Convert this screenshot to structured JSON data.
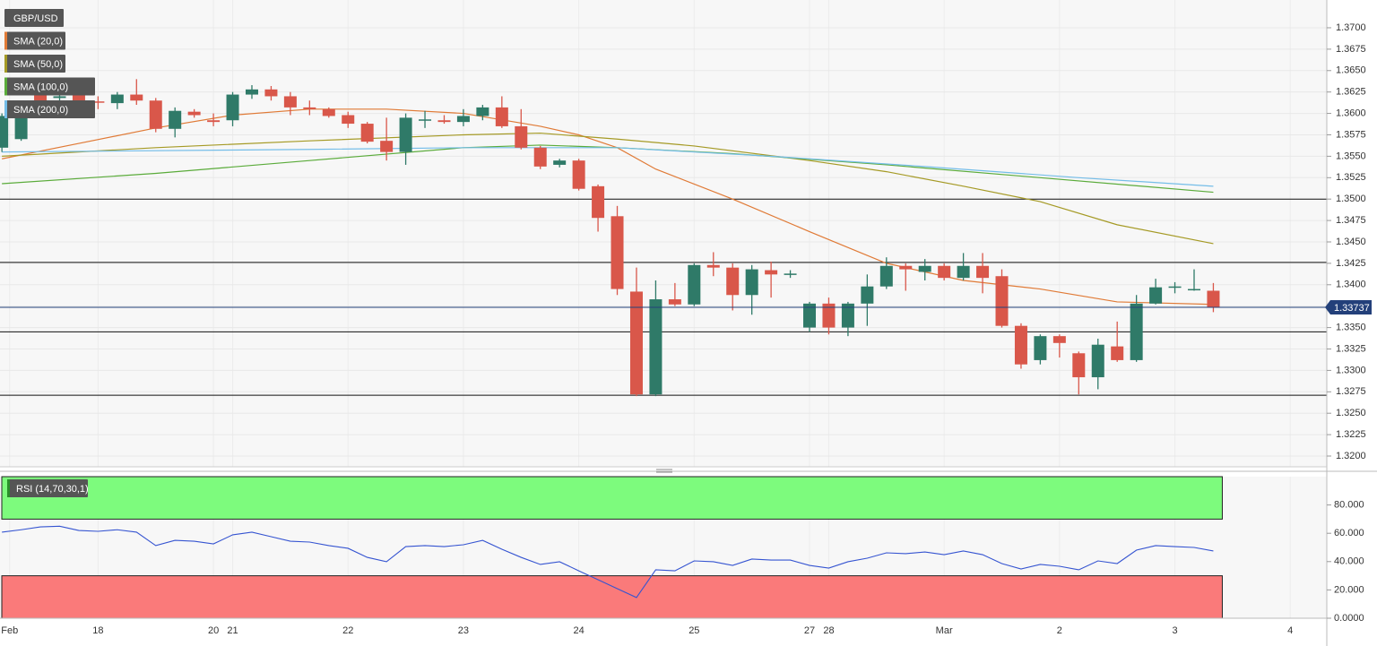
{
  "chart_data": [
    {
      "type": "candlestick",
      "title": "GBP/USD",
      "xlim": [
        -0.1,
        68.9
      ],
      "xticks": [
        {
          "value": 0.4,
          "label": "Feb"
        },
        {
          "value": 5,
          "label": "18"
        },
        {
          "value": 11,
          "label": "20"
        },
        {
          "value": 12,
          "label": "21"
        },
        {
          "value": 18,
          "label": "22"
        },
        {
          "value": 24,
          "label": "23"
        },
        {
          "value": 30,
          "label": "24"
        },
        {
          "value": 36,
          "label": "25"
        },
        {
          "value": 42,
          "label": "27"
        },
        {
          "value": 43,
          "label": "28"
        },
        {
          "value": 49,
          "label": "Mar"
        },
        {
          "value": 55,
          "label": "2"
        },
        {
          "value": 61,
          "label": "3"
        },
        {
          "value": 67,
          "label": "4"
        }
      ],
      "ylim": [
        1.31885,
        1.37324
      ],
      "yticks": [
        {
          "value": 1.32,
          "label": "1.3200"
        },
        {
          "value": 1.3225,
          "label": "1.3225"
        },
        {
          "value": 1.325,
          "label": "1.3250"
        },
        {
          "value": 1.3275,
          "label": "1.3275"
        },
        {
          "value": 1.33,
          "label": "1.3300"
        },
        {
          "value": 1.3325,
          "label": "1.3325"
        },
        {
          "value": 1.335,
          "label": "1.3350"
        },
        {
          "value": 1.3375,
          "label": "1.3375"
        },
        {
          "value": 1.34,
          "label": "1.3400"
        },
        {
          "value": 1.3425,
          "label": "1.3425"
        },
        {
          "value": 1.345,
          "label": "1.3450"
        },
        {
          "value": 1.3475,
          "label": "1.3475"
        },
        {
          "value": 1.35,
          "label": "1.3500"
        },
        {
          "value": 1.3525,
          "label": "1.3525"
        },
        {
          "value": 1.355,
          "label": "1.3550"
        },
        {
          "value": 1.3575,
          "label": "1.3575"
        },
        {
          "value": 1.36,
          "label": "1.3600"
        },
        {
          "value": 1.3625,
          "label": "1.3625"
        },
        {
          "value": 1.365,
          "label": "1.3650"
        },
        {
          "value": 1.3675,
          "label": "1.3675"
        },
        {
          "value": 1.37,
          "label": "1.3700"
        }
      ],
      "grid": true,
      "up_color": "#2f7a68",
      "down_color": "#d9574a",
      "open": [
        1.356,
        1.357,
        1.3622,
        1.3618,
        1.3622,
        1.3614,
        1.3612,
        1.3622,
        1.3615,
        1.3582,
        1.3602,
        1.3592,
        1.3592,
        1.3622,
        1.3628,
        1.362,
        1.3607,
        1.3605,
        1.3598,
        1.3588,
        1.3568,
        1.3555,
        1.3593,
        1.3592,
        1.359,
        1.3597,
        1.3607,
        1.3585,
        1.356,
        1.354,
        1.3545,
        1.3515,
        1.348,
        1.3392,
        1.3272,
        1.3383,
        1.3377,
        1.3423,
        1.342,
        1.3388,
        1.3417,
        1.3413,
        1.335,
        1.3378,
        1.335,
        1.3378,
        1.3398,
        1.3422,
        1.3415,
        1.3422,
        1.3408,
        1.3422,
        1.341,
        1.3352,
        1.3312,
        1.334,
        1.332,
        1.3292,
        1.3328,
        1.3312,
        1.3378,
        1.3397,
        1.3395,
        1.3393
      ],
      "high": [
        1.36,
        1.3615,
        1.3625,
        1.3625,
        1.3625,
        1.362,
        1.3625,
        1.364,
        1.3618,
        1.3607,
        1.3605,
        1.36,
        1.3625,
        1.3633,
        1.3632,
        1.3625,
        1.3615,
        1.3607,
        1.3602,
        1.359,
        1.3595,
        1.36,
        1.3603,
        1.3598,
        1.3605,
        1.361,
        1.362,
        1.3605,
        1.3562,
        1.3547,
        1.3547,
        1.3517,
        1.3492,
        1.342,
        1.3405,
        1.3402,
        1.3425,
        1.3438,
        1.3425,
        1.3423,
        1.3427,
        1.3417,
        1.338,
        1.3385,
        1.338,
        1.3412,
        1.3432,
        1.3425,
        1.343,
        1.3425,
        1.3437,
        1.3437,
        1.3418,
        1.3355,
        1.3342,
        1.3342,
        1.3322,
        1.3337,
        1.3357,
        1.3388,
        1.3407,
        1.3403,
        1.3418,
        1.3402
      ],
      "low": [
        1.3555,
        1.3568,
        1.3612,
        1.3615,
        1.3612,
        1.3605,
        1.3605,
        1.361,
        1.3578,
        1.3572,
        1.3595,
        1.3585,
        1.3585,
        1.3617,
        1.3615,
        1.3598,
        1.3598,
        1.3595,
        1.3583,
        1.3565,
        1.3545,
        1.354,
        1.3583,
        1.3588,
        1.3585,
        1.3592,
        1.3583,
        1.3558,
        1.3535,
        1.3537,
        1.351,
        1.3462,
        1.3388,
        1.327,
        1.327,
        1.3375,
        1.3375,
        1.341,
        1.337,
        1.3365,
        1.3385,
        1.3408,
        1.3345,
        1.3342,
        1.334,
        1.3352,
        1.3395,
        1.3393,
        1.3405,
        1.3405,
        1.3405,
        1.339,
        1.335,
        1.3302,
        1.3307,
        1.3315,
        1.3272,
        1.3278,
        1.331,
        1.331,
        1.3377,
        1.339,
        1.3393,
        1.3368
      ],
      "close": [
        1.3597,
        1.3608,
        1.3615,
        1.362,
        1.3614,
        1.3613,
        1.3622,
        1.3615,
        1.3582,
        1.3603,
        1.3598,
        1.359,
        1.3622,
        1.3628,
        1.362,
        1.3607,
        1.3605,
        1.3597,
        1.3588,
        1.3567,
        1.3555,
        1.3595,
        1.3593,
        1.359,
        1.3597,
        1.3607,
        1.3585,
        1.356,
        1.3538,
        1.3545,
        1.3512,
        1.3478,
        1.3395,
        1.3272,
        1.3383,
        1.3377,
        1.3423,
        1.342,
        1.3388,
        1.3418,
        1.3412,
        1.3413,
        1.3378,
        1.335,
        1.3378,
        1.3398,
        1.3422,
        1.3418,
        1.3422,
        1.3408,
        1.3422,
        1.3408,
        1.3352,
        1.3307,
        1.334,
        1.3332,
        1.3292,
        1.333,
        1.3312,
        1.3378,
        1.3397,
        1.3398,
        1.3395,
        1.33737
      ],
      "last_price": 1.33737,
      "last_price_color": "#23407a",
      "levels": [
        1.35,
        1.3426,
        1.3345,
        1.3271
      ],
      "level_color": "#111111",
      "series": [
        {
          "name": "SMA (20,0)",
          "color": "#e07a36",
          "x": [
            0,
            4,
            8,
            12,
            16,
            20,
            24,
            28,
            30,
            32,
            34,
            38,
            42,
            46,
            50,
            54,
            58,
            63
          ],
          "values": [
            1.3547,
            1.3565,
            1.3583,
            1.3598,
            1.3605,
            1.3605,
            1.36,
            1.3585,
            1.3575,
            1.356,
            1.3535,
            1.35,
            1.3462,
            1.3425,
            1.3405,
            1.3395,
            1.338,
            1.3377
          ]
        },
        {
          "name": "SMA (50,0)",
          "color": "#a59a25",
          "x": [
            0,
            8,
            16,
            24,
            28,
            32,
            36,
            42,
            46,
            50,
            54,
            58,
            63
          ],
          "values": [
            1.355,
            1.356,
            1.3568,
            1.3575,
            1.3577,
            1.357,
            1.3562,
            1.3545,
            1.3532,
            1.3515,
            1.3497,
            1.347,
            1.3448
          ]
        },
        {
          "name": "SMA (100,0)",
          "color": "#5aab3a",
          "x": [
            0,
            8,
            16,
            24,
            28,
            32,
            38,
            46,
            54,
            63
          ],
          "values": [
            1.3518,
            1.353,
            1.3545,
            1.356,
            1.3563,
            1.356,
            1.3553,
            1.354,
            1.3525,
            1.3508
          ]
        },
        {
          "name": "SMA (200,0)",
          "color": "#74bde8",
          "x": [
            0,
            16,
            24,
            32,
            40,
            48,
            56,
            63
          ],
          "values": [
            1.3555,
            1.3558,
            1.356,
            1.356,
            1.355,
            1.3538,
            1.3525,
            1.3515
          ]
        }
      ]
    },
    {
      "type": "rsi",
      "title": "RSI (14,70,30,1)",
      "ylim": [
        0,
        100
      ],
      "yticks": [
        {
          "value": 0,
          "label": "0.0000"
        },
        {
          "value": 20,
          "label": "20.000"
        },
        {
          "value": 40,
          "label": "40.000"
        },
        {
          "value": 60,
          "label": "60.000"
        },
        {
          "value": 80,
          "label": "80.000"
        }
      ],
      "upper": 70,
      "lower": 30,
      "upper_color": "#7dfb7d",
      "lower_color": "#fa7a7a",
      "color": "#3554d1",
      "values": [
        60.8,
        62.5,
        64.5,
        65,
        62,
        61.4,
        62.5,
        60.8,
        51.3,
        55,
        54.4,
        52.5,
        58.9,
        60.8,
        57.6,
        54.4,
        53.8,
        51.3,
        49.4,
        43,
        39.9,
        50.6,
        51.3,
        50.6,
        51.9,
        55,
        48.7,
        43,
        38,
        39.9,
        33.5,
        27.2,
        20.9,
        14.6,
        34.2,
        33.5,
        40.5,
        39.9,
        37.3,
        41.8,
        41.1,
        41.1,
        37.3,
        35.4,
        39.9,
        42.4,
        46.2,
        45.6,
        46.8,
        44.9,
        47.5,
        44.9,
        38.6,
        34.8,
        38,
        36.7,
        34.2,
        40.5,
        38.6,
        48.1,
        51.3,
        50.6,
        50,
        47.5
      ]
    }
  ]
}
